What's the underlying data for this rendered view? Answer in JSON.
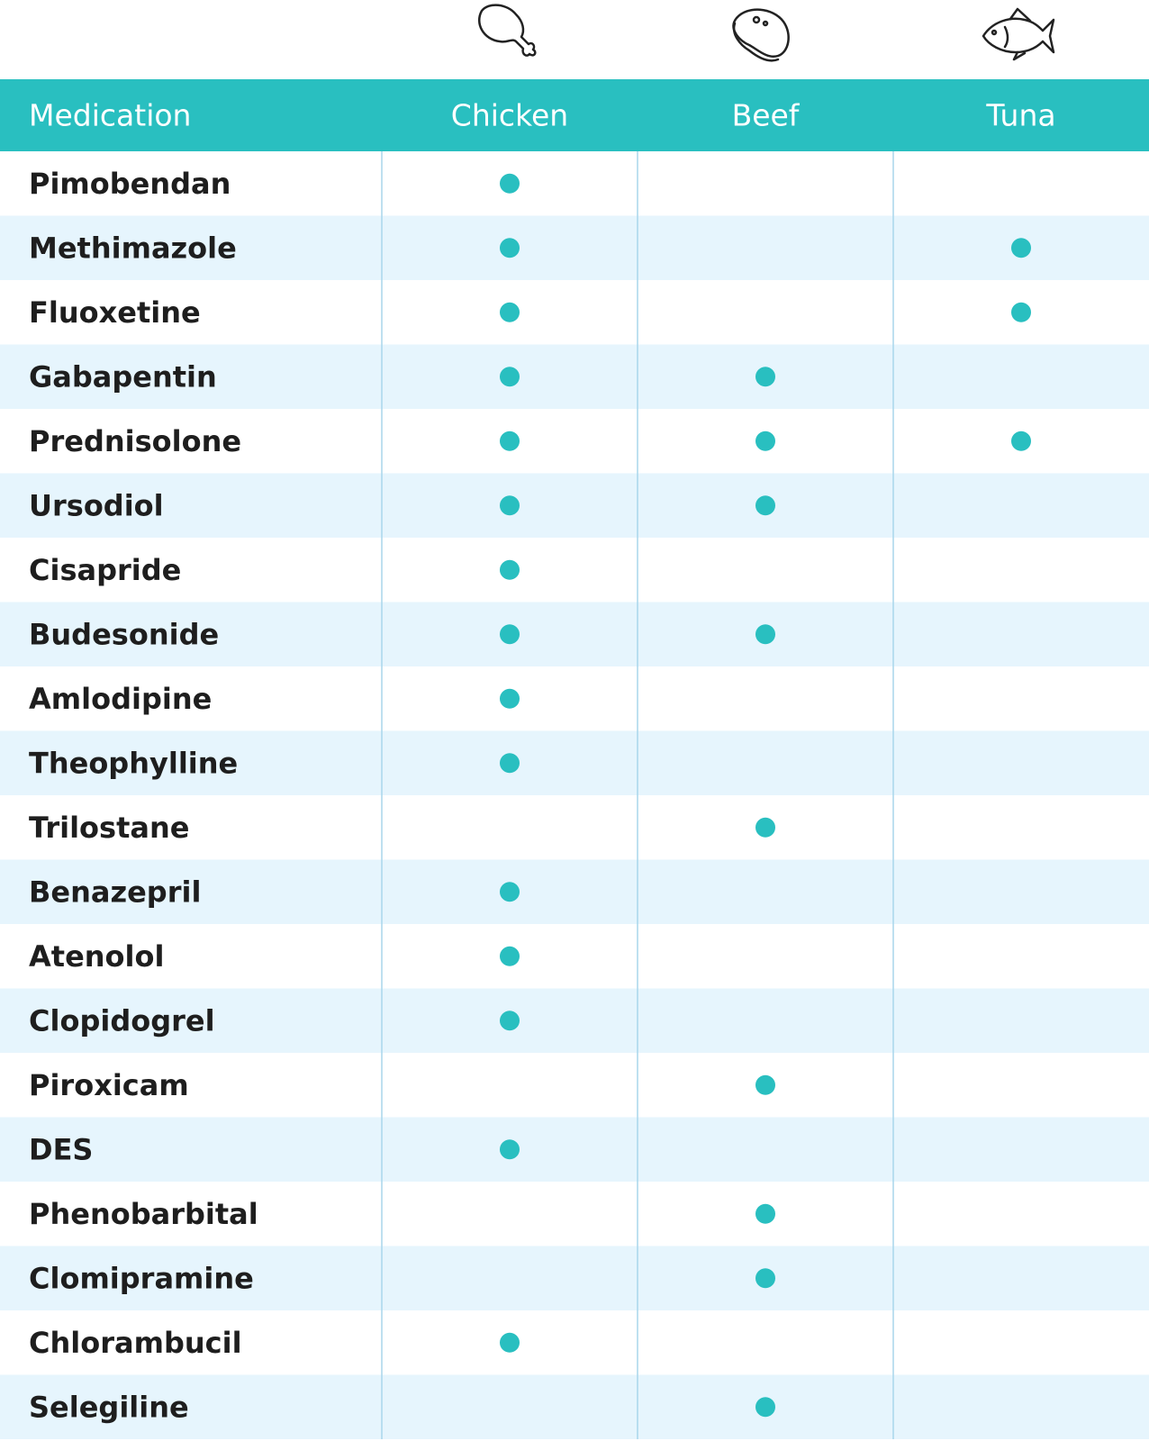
{
  "table": {
    "columns": [
      "Medication",
      "Chicken",
      "Beef",
      "Tuna"
    ],
    "rows": [
      {
        "medication": "Pimobendan",
        "marks": [
          true,
          false,
          false
        ]
      },
      {
        "medication": "Methimazole",
        "marks": [
          true,
          false,
          true
        ]
      },
      {
        "medication": "Fluoxetine",
        "marks": [
          true,
          false,
          true
        ]
      },
      {
        "medication": "Gabapentin",
        "marks": [
          true,
          true,
          false
        ]
      },
      {
        "medication": "Prednisolone",
        "marks": [
          true,
          true,
          true
        ]
      },
      {
        "medication": "Ursodiol",
        "marks": [
          true,
          true,
          false
        ]
      },
      {
        "medication": "Cisapride",
        "marks": [
          true,
          false,
          false
        ]
      },
      {
        "medication": "Budesonide",
        "marks": [
          true,
          true,
          false
        ]
      },
      {
        "medication": "Amlodipine",
        "marks": [
          true,
          false,
          false
        ]
      },
      {
        "medication": "Theophylline",
        "marks": [
          true,
          false,
          false
        ]
      },
      {
        "medication": "Trilostane",
        "marks": [
          false,
          true,
          false
        ]
      },
      {
        "medication": "Benazepril",
        "marks": [
          true,
          false,
          false
        ]
      },
      {
        "medication": "Atenolol",
        "marks": [
          true,
          false,
          false
        ]
      },
      {
        "medication": "Clopidogrel",
        "marks": [
          true,
          false,
          false
        ]
      },
      {
        "medication": "Piroxicam",
        "marks": [
          false,
          true,
          false
        ]
      },
      {
        "medication": "DES",
        "marks": [
          true,
          false,
          false
        ]
      },
      {
        "medication": "Phenobarbital",
        "marks": [
          false,
          true,
          false
        ]
      },
      {
        "medication": "Clomipramine",
        "marks": [
          false,
          true,
          false
        ]
      },
      {
        "medication": "Chlorambucil",
        "marks": [
          true,
          false,
          false
        ]
      },
      {
        "medication": "Selegiline",
        "marks": [
          false,
          true,
          false
        ]
      }
    ]
  }
}
